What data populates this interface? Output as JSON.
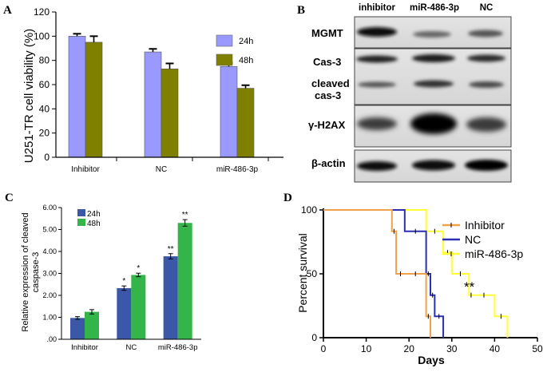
{
  "panel_letters": [
    "A",
    "B",
    "C",
    "D"
  ],
  "chart_data": [
    {
      "panel": "A",
      "type": "bar",
      "ylabel": "U251-TR cell viability (%)",
      "xlabel": "",
      "ylim": [
        0,
        120
      ],
      "yticks": [
        "0",
        "20",
        "40",
        "60",
        "80",
        "100",
        "120"
      ],
      "categories": [
        "Inhibitor",
        "NC",
        "miR-486-3p"
      ],
      "series": [
        {
          "name": "24h",
          "color": "#9999ff",
          "values": [
            100,
            87,
            75
          ],
          "errors": [
            2,
            2.5,
            3
          ]
        },
        {
          "name": "48h",
          "color": "#808000",
          "values": [
            95,
            73,
            57
          ],
          "errors": [
            5,
            4.5,
            2.5
          ]
        }
      ],
      "legend_position": "top-right"
    },
    {
      "panel": "C",
      "type": "bar",
      "ylabel": "Relative expression of cleaved caspase-3",
      "ylabel_lines": [
        "Relative expression of cleaved",
        "caspase-3"
      ],
      "xlabel": "",
      "ylim": [
        0,
        6
      ],
      "yticks": [
        ".00",
        "1.00",
        "2.00",
        "3.00",
        "4.00",
        "5.00",
        "6.00"
      ],
      "categories": [
        "Inhibitor",
        "NC",
        "miR-486-3p"
      ],
      "series": [
        {
          "name": "24h",
          "color": "#3b58a8",
          "values": [
            0.97,
            2.33,
            3.78
          ],
          "errors": [
            0.06,
            0.1,
            0.12
          ],
          "sig": [
            "",
            "*",
            "**"
          ]
        },
        {
          "name": "48h",
          "color": "#33b54a",
          "values": [
            1.25,
            2.93,
            5.3
          ],
          "errors": [
            0.1,
            0.08,
            0.15
          ],
          "sig": [
            "",
            "*",
            "**"
          ]
        }
      ],
      "legend_position": "top-left"
    },
    {
      "panel": "D",
      "type": "line",
      "subtype": "kaplan-meier",
      "title": "",
      "xlabel": "Days",
      "ylabel": "Percent survival",
      "xlim": [
        0,
        50
      ],
      "ylim": [
        0,
        100
      ],
      "xticks": [
        "0",
        "10",
        "20",
        "30",
        "40",
        "50"
      ],
      "yticks": [
        "0",
        "50",
        "100"
      ],
      "series": [
        {
          "name": "Inhibitor",
          "color": "#f0a14a",
          "x": [
            0,
            16,
            17,
            19,
            24,
            25
          ],
          "y": [
            100,
            83.3,
            50,
            50,
            16.7,
            0
          ]
        },
        {
          "name": "NC",
          "color": "#2a2fb5",
          "x": [
            0,
            19,
            24,
            25,
            26,
            28
          ],
          "y": [
            100,
            83.3,
            50,
            33.3,
            16.7,
            0
          ]
        },
        {
          "name": "miR-486-3p",
          "color": "#ffff33",
          "x": [
            0,
            24,
            28,
            30,
            34,
            35,
            40,
            43
          ],
          "y": [
            100,
            83.3,
            66.7,
            50,
            33.3,
            33.3,
            16.7,
            0
          ]
        }
      ],
      "annotation": "**",
      "legend_position": "top-right"
    }
  ],
  "blot": {
    "panel": "B",
    "columns": [
      "inhibitor",
      "miR-486-3p",
      "NC"
    ],
    "rows": [
      "MGMT",
      "Cas-3",
      "cleaved",
      "cas-3",
      "γ-H2AX",
      "β-actin"
    ]
  }
}
